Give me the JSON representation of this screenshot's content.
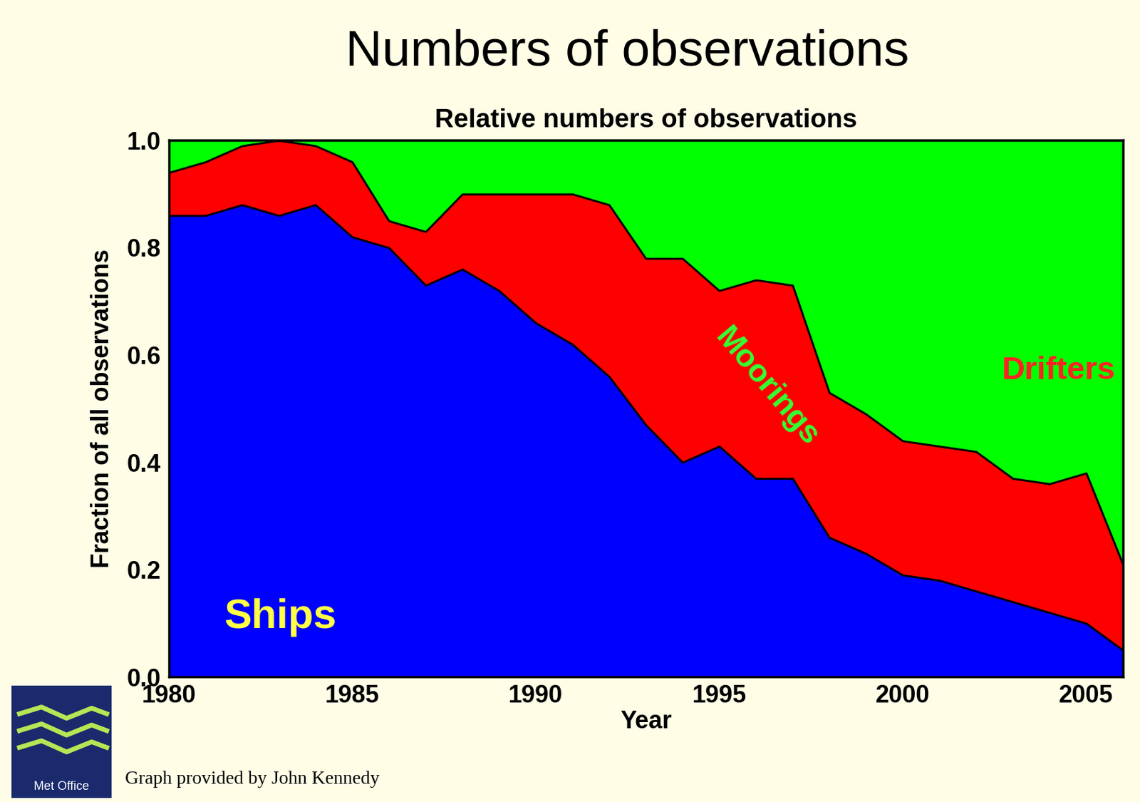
{
  "chart_data": {
    "type": "area",
    "stacked": true,
    "title": "Numbers of observations",
    "subtitle": "Relative numbers of observations",
    "x_label": "Year",
    "y_label": "Fraction of all observations",
    "annotations": [
      "Graph provided by John Kennedy",
      "Met Office"
    ],
    "x": [
      1980,
      1981,
      1982,
      1983,
      1984,
      1985,
      1986,
      1987,
      1988,
      1989,
      1990,
      1991,
      1992,
      1993,
      1994,
      1995,
      1996,
      1997,
      1998,
      1999,
      2000,
      2001,
      2002,
      2003,
      2004,
      2005,
      2006
    ],
    "series": [
      {
        "name": "Ships",
        "color": "#0000ff",
        "values": [
          0.86,
          0.86,
          0.88,
          0.86,
          0.88,
          0.82,
          0.8,
          0.73,
          0.76,
          0.72,
          0.66,
          0.62,
          0.56,
          0.47,
          0.4,
          0.43,
          0.37,
          0.37,
          0.26,
          0.23,
          0.19,
          0.18,
          0.16,
          0.14,
          0.12,
          0.1,
          0.05
        ]
      },
      {
        "name": "Moorings",
        "color": "#ff0000",
        "values": [
          0.08,
          0.1,
          0.11,
          0.14,
          0.11,
          0.14,
          0.05,
          0.1,
          0.14,
          0.18,
          0.24,
          0.28,
          0.32,
          0.31,
          0.38,
          0.29,
          0.37,
          0.36,
          0.27,
          0.26,
          0.25,
          0.25,
          0.26,
          0.23,
          0.24,
          0.28,
          0.16
        ]
      },
      {
        "name": "Drifters",
        "color": "#00ff00",
        "values": [
          0.06,
          0.04,
          0.01,
          0.0,
          0.01,
          0.04,
          0.15,
          0.17,
          0.1,
          0.1,
          0.1,
          0.1,
          0.12,
          0.22,
          0.22,
          0.28,
          0.26,
          0.27,
          0.47,
          0.51,
          0.56,
          0.57,
          0.58,
          0.63,
          0.64,
          0.62,
          0.79
        ]
      }
    ],
    "xlim": [
      1980,
      2006
    ],
    "xticks": [
      1980,
      1985,
      1990,
      1995,
      2000,
      2005
    ],
    "ylim": [
      0,
      1
    ],
    "yticks": [
      {
        "value": 0,
        "label": "0.0"
      },
      0.2,
      0.4,
      0.6,
      0.8,
      {
        "value": 1,
        "label": "1.0"
      }
    ],
    "grid": false
  }
}
